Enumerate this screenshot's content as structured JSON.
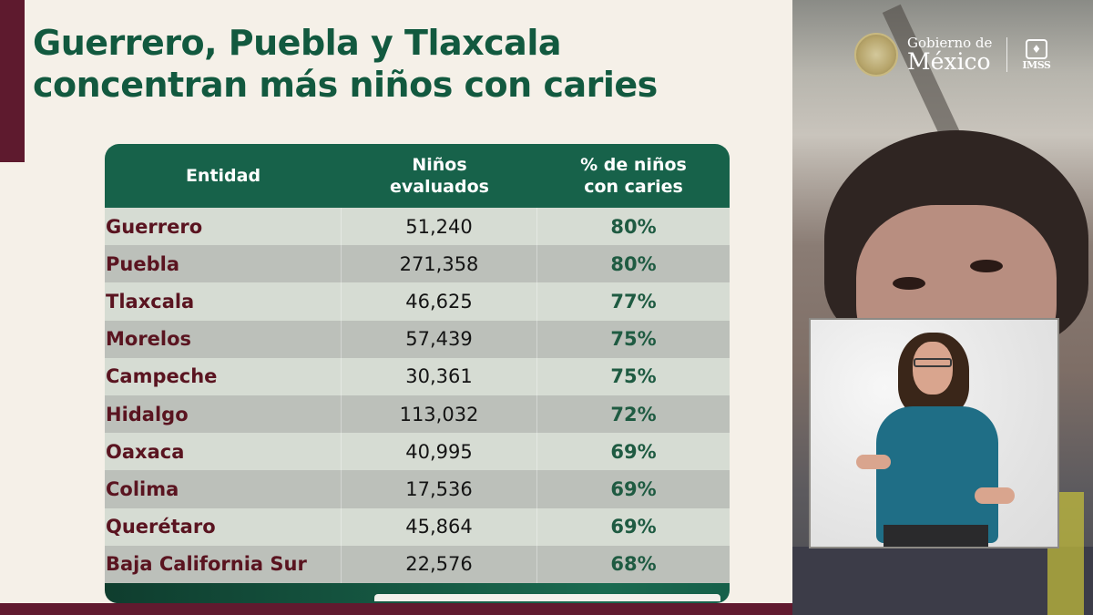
{
  "slide": {
    "title_line1": "Guerrero, Puebla y Tlaxcala",
    "title_line2": "concentran más niños con caries",
    "colors": {
      "title_green": "#12593f",
      "header_green": "#17624a",
      "maroon": "#5e1a2e",
      "state_text": "#5a1420",
      "percent_text": "#1f5b42",
      "background": "#f5f0e8"
    }
  },
  "table": {
    "headers": {
      "entidad": "Entidad",
      "ninos_line1": "Niños",
      "ninos_line2": "evaluados",
      "pct_line1": "% de niños",
      "pct_line2": "con caries"
    },
    "rows": [
      {
        "entidad": "Guerrero",
        "ninos_evaluados": "51,240",
        "pct_caries": "80%"
      },
      {
        "entidad": "Puebla",
        "ninos_evaluados": "271,358",
        "pct_caries": "80%"
      },
      {
        "entidad": "Tlaxcala",
        "ninos_evaluados": "46,625",
        "pct_caries": "77%"
      },
      {
        "entidad": "Morelos",
        "ninos_evaluados": "57,439",
        "pct_caries": "75%"
      },
      {
        "entidad": "Campeche",
        "ninos_evaluados": "30,361",
        "pct_caries": "75%"
      },
      {
        "entidad": "Hidalgo",
        "ninos_evaluados": "113,032",
        "pct_caries": "72%"
      },
      {
        "entidad": "Oaxaca",
        "ninos_evaluados": "40,995",
        "pct_caries": "69%"
      },
      {
        "entidad": "Colima",
        "ninos_evaluados": "17,536",
        "pct_caries": "69%"
      },
      {
        "entidad": "Querétaro",
        "ninos_evaluados": "45,864",
        "pct_caries": "69%"
      },
      {
        "entidad": "Baja California Sur",
        "ninos_evaluados": "22,576",
        "pct_caries": "68%"
      }
    ]
  },
  "video": {
    "logo": {
      "gov_line1": "Gobierno de",
      "gov_line2": "México",
      "imss_mark": "♦",
      "imss_label": "IMSS",
      "seal_icon": "mexico-coat-of-arms-icon"
    },
    "inset": "sign-language-interpreter"
  }
}
